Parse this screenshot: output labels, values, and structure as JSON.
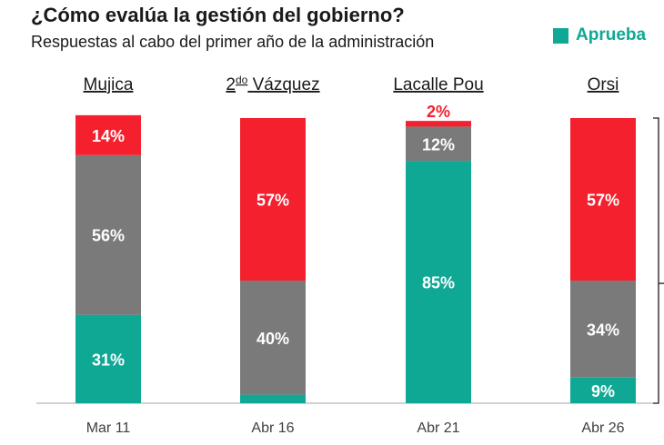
{
  "chart_data": {
    "type": "bar",
    "title": "¿Cómo evalúa la gestión del gobierno?",
    "subtitle": "Respuestas al cabo del primer año de la administración",
    "stacked": true,
    "groups": [
      {
        "name_parts": [
          "Mujica"
        ],
        "date": "Mar 11"
      },
      {
        "name_parts": [
          "2",
          "do",
          " Vázquez"
        ],
        "date": "Abr 16"
      },
      {
        "name_parts": [
          "Lacalle Pou"
        ],
        "date": "Abr 21"
      },
      {
        "name_parts": [
          "Orsi"
        ],
        "date": "Abr 26"
      }
    ],
    "series": [
      {
        "name": "Aprueba",
        "color": "#0fa895",
        "values": [
          31,
          3,
          85,
          9
        ]
      },
      {
        "color": "#7a7a7a",
        "values": [
          56,
          40,
          12,
          34
        ]
      },
      {
        "color": "#f5202e",
        "values": [
          14,
          57,
          2,
          57
        ]
      }
    ],
    "value_labels": [
      [
        "31%",
        "3%",
        "85%",
        "9%"
      ],
      [
        "56%",
        "40%",
        "12%",
        "34%"
      ],
      [
        "14%",
        "57%",
        "2%",
        "57%"
      ]
    ],
    "ylim": [
      0,
      100
    ],
    "legend_position": "top-right"
  }
}
